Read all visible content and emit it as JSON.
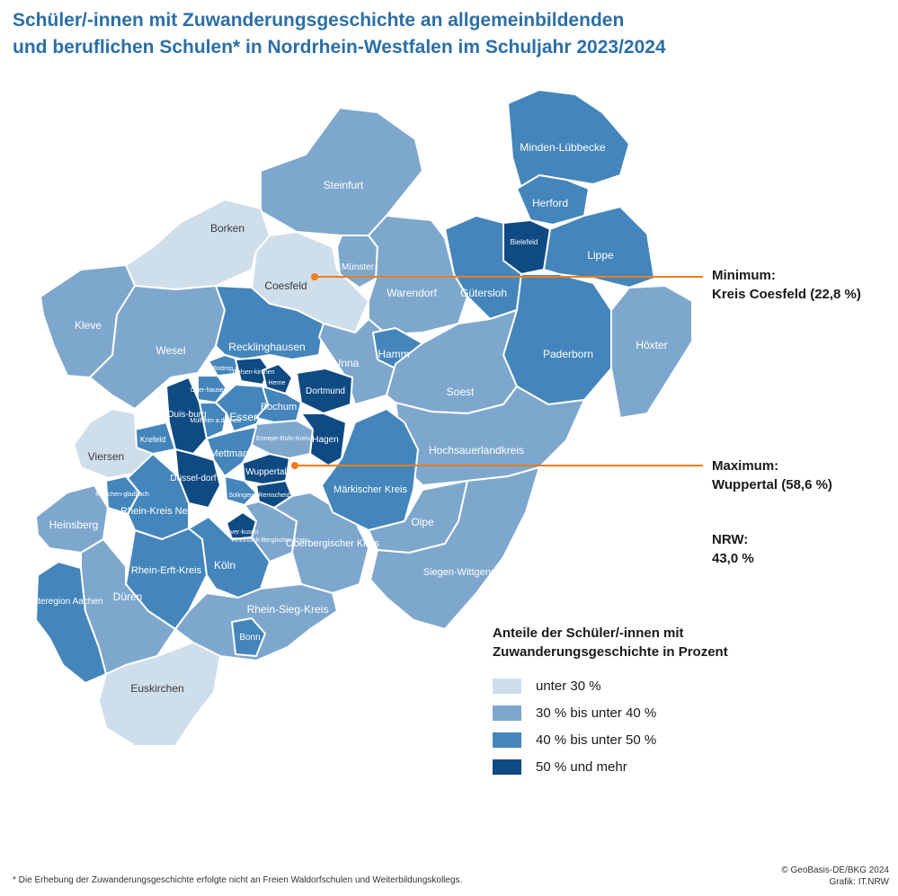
{
  "title": {
    "line1": "Schüler/-innen mit Zuwanderungsgeschichte an allgemeinbildenden",
    "line2": "und beruflichen Schulen* in Nordrhein-Westfalen im Schuljahr 2023/2024"
  },
  "colors": {
    "class1": "#cfdeeb",
    "class2": "#7ea7cd",
    "class3": "#4485bb",
    "class4": "#0f4a83",
    "callout_line": "#ef7d1a",
    "title": "#2b6fa6"
  },
  "regions": {
    "steinfurt": "Steinfurt",
    "borken": "Borken",
    "coesfeld": "Coesfeld",
    "muenster": "Münster",
    "warendorf": "Warendorf",
    "kleve": "Kleve",
    "wesel": "Wesel",
    "recklinghausen": "Recklinghausen",
    "unna": "Unna",
    "hamm": "Hamm",
    "bottrop": "Bottrop",
    "gelsenkirchen": "Gelsen-kirchen",
    "oberhausen": "Ober-hausen",
    "herne": "Herne",
    "dortmund": "Dortmund",
    "duisburg": "Duis-burg",
    "muelheim": "Mülheim a.d. Ruhr",
    "essen": "Essen",
    "bochum": "Bochum",
    "ennepe": "Ennepe-Ruhr-Kreis",
    "hagen": "Hagen",
    "krefeld": "Krefeld",
    "mettmann": "Mettmann",
    "viersen": "Viersen",
    "duesseldorf": "Düssel-dorf",
    "wuppertal": "Wuppertal",
    "solingen": "Solingen",
    "remscheid": "Remscheid",
    "mgladbach": "Mönchen-gladbach",
    "neuss": "Rhein-Kreis Neuss",
    "heinsberg": "Heinsberg",
    "leverkusen": "Lever-kusen",
    "rheinberg": "Rheinisch-Bergischer Kreis",
    "oberberg": "Oberbergischer Kreis",
    "erft": "Rhein-Erft-Kreis",
    "koeln": "Köln",
    "aachen": "Städteregion Aachen",
    "dueren": "Düren",
    "siegkreis": "Rhein-Sieg-Kreis",
    "bonn": "Bonn",
    "euskirchen": "Euskirchen",
    "minden": "Minden-Lübbecke",
    "herford": "Herford",
    "bielefeld": "Bielefeld",
    "lippe": "Lippe",
    "guetersloh": "Gütersloh",
    "paderborn": "Paderborn",
    "hoexter": "Höxter",
    "soest": "Soest",
    "hochsauerland": "Hochsauerlandkreis",
    "maerkisch": "Märkischer Kreis",
    "olpe": "Olpe",
    "siegen": "Siegen-Wittgenstein"
  },
  "callouts": {
    "minimum_label": "Minimum:",
    "minimum_value": "Kreis Coesfeld (22,8 %)",
    "maximum_label": "Maximum:",
    "maximum_value": "Wuppertal (58,6 %)",
    "nrw_label": "NRW:",
    "nrw_value": "43,0 %"
  },
  "legend": {
    "title_line1": "Anteile der Schüler/-innen mit",
    "title_line2": "Zuwanderungsgeschichte in Prozent",
    "items": [
      "unter 30 %",
      "30 % bis unter 40 %",
      "40 % bis unter 50 %",
      "50 % und mehr"
    ]
  },
  "footnote": "* Die Erhebung der Zuwanderungsgeschichte erfolgte nicht an Freien Waldorfschulen und Weiterbildungskollegs.",
  "credits": {
    "line1": "© GeoBasis-DE/BKG 2024",
    "line2": "Grafik: IT.NRW"
  }
}
